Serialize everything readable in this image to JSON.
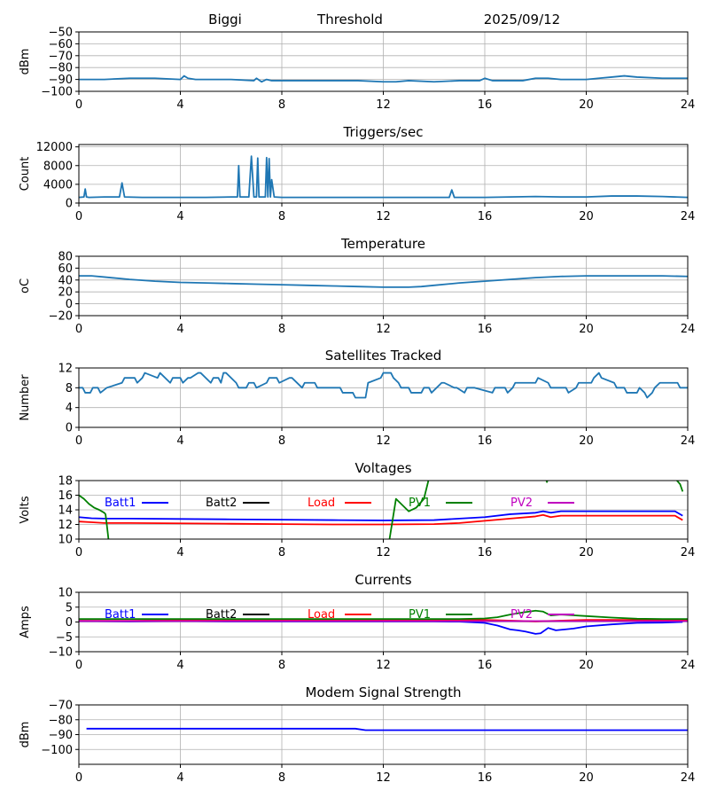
{
  "header": {
    "station": "Biggi",
    "mode": "Threshold",
    "date": "2025/09/12"
  },
  "chart_data": [
    {
      "id": "signal",
      "type": "line",
      "title": "",
      "xlabel": "",
      "ylabel": "dBm",
      "xlim": [
        0,
        24
      ],
      "ylim": [
        -100,
        -50
      ],
      "xticks": [
        0,
        4,
        8,
        12,
        16,
        20,
        24
      ],
      "yticks": [
        -100,
        -90,
        -80,
        -70,
        -60,
        -50
      ],
      "grid": true,
      "series": [
        {
          "color": "#1f77b4",
          "x": [
            0,
            1,
            2,
            3,
            4,
            4.15,
            4.3,
            4.6,
            5,
            6,
            6.9,
            7.0,
            7.2,
            7.4,
            7.6,
            8,
            9,
            10,
            11,
            12,
            12.5,
            13,
            14,
            15,
            15.8,
            16,
            16.3,
            16.8,
            17.5,
            18,
            18.5,
            19,
            20,
            20.5,
            21,
            21.5,
            22,
            23,
            24
          ],
          "y": [
            -90,
            -90,
            -89,
            -89,
            -90,
            -87,
            -89,
            -90,
            -90,
            -90,
            -91,
            -89,
            -92,
            -90,
            -91,
            -91,
            -91,
            -91,
            -91,
            -92,
            -92,
            -91,
            -92,
            -91,
            -91,
            -89,
            -91,
            -91,
            -91,
            -89,
            -89,
            -90,
            -90,
            -89,
            -88,
            -87,
            -88,
            -89,
            -89
          ]
        }
      ]
    },
    {
      "id": "triggers",
      "type": "line",
      "title": "Triggers/sec",
      "xlabel": "",
      "ylabel": "Count",
      "xlim": [
        0,
        24
      ],
      "ylim": [
        0,
        12500
      ],
      "xticks": [
        0,
        4,
        8,
        12,
        16,
        20,
        24
      ],
      "yticks": [
        0,
        4000,
        8000,
        12000
      ],
      "grid": true,
      "series": [
        {
          "color": "#1f77b4",
          "x": [
            0,
            0.2,
            0.25,
            0.3,
            0.4,
            1,
            1.6,
            1.7,
            1.8,
            2.5,
            3,
            4,
            5,
            6,
            6.25,
            6.3,
            6.35,
            6.6,
            6.7,
            6.8,
            6.9,
            7.0,
            7.05,
            7.1,
            7.2,
            7.35,
            7.4,
            7.45,
            7.5,
            7.55,
            7.6,
            7.7,
            8,
            9,
            10,
            11,
            12,
            13,
            14,
            14.6,
            14.7,
            14.8,
            15,
            16,
            17,
            18,
            19,
            20,
            21,
            22,
            23,
            24
          ],
          "y": [
            1200,
            1300,
            3000,
            1300,
            1200,
            1300,
            1300,
            4300,
            1300,
            1200,
            1200,
            1200,
            1200,
            1300,
            1300,
            8000,
            1300,
            1300,
            1300,
            10000,
            1300,
            1300,
            9600,
            1300,
            1300,
            1300,
            9700,
            1300,
            9500,
            1300,
            5000,
            1300,
            1200,
            1200,
            1200,
            1200,
            1200,
            1200,
            1200,
            1200,
            2800,
            1200,
            1200,
            1200,
            1300,
            1400,
            1300,
            1300,
            1500,
            1500,
            1400,
            1200
          ]
        }
      ]
    },
    {
      "id": "temperature",
      "type": "line",
      "title": "Temperature",
      "xlabel": "",
      "ylabel": "oC",
      "xlim": [
        0,
        24
      ],
      "ylim": [
        -20,
        80
      ],
      "xticks": [
        0,
        4,
        8,
        12,
        16,
        20,
        24
      ],
      "yticks": [
        -20,
        0,
        20,
        40,
        60,
        80
      ],
      "grid": true,
      "series": [
        {
          "color": "#1f77b4",
          "x": [
            0,
            0.5,
            1,
            2,
            3,
            4,
            5,
            6,
            7,
            8,
            9,
            10,
            11,
            12,
            13,
            13.5,
            14,
            15,
            16,
            17,
            18,
            19,
            20,
            21,
            22,
            23,
            24
          ],
          "y": [
            47,
            47,
            45,
            41,
            38,
            36,
            35,
            34,
            33,
            32,
            31,
            30,
            29,
            28,
            28,
            29,
            31,
            35,
            38,
            41,
            44,
            46,
            47,
            47,
            47,
            47,
            46
          ]
        }
      ]
    },
    {
      "id": "satellites",
      "type": "line",
      "title": "Satellites Tracked",
      "xlabel": "",
      "ylabel": "Number",
      "xlim": [
        0,
        24
      ],
      "ylim": [
        0,
        12
      ],
      "xticks": [
        0,
        4,
        8,
        12,
        16,
        20,
        24
      ],
      "yticks": [
        0,
        4,
        8,
        12
      ],
      "grid": true,
      "series": [
        {
          "color": "#1f77b4",
          "x": [
            0,
            0.15,
            0.25,
            0.45,
            0.55,
            0.75,
            0.85,
            1.1,
            1.7,
            1.8,
            2.2,
            2.3,
            2.5,
            2.6,
            3.1,
            3.2,
            3.6,
            3.7,
            4.0,
            4.1,
            4.3,
            4.4,
            4.7,
            4.8,
            5.2,
            5.3,
            5.5,
            5.6,
            5.7,
            5.8,
            6.2,
            6.3,
            6.6,
            6.7,
            6.9,
            7.0,
            7.4,
            7.5,
            7.8,
            7.9,
            8.3,
            8.4,
            8.8,
            8.9,
            9.3,
            9.4,
            9.5,
            9.6,
            10.3,
            10.4,
            10.8,
            10.9,
            11.3,
            11.4,
            11.9,
            12.0,
            12.3,
            12.4,
            12.6,
            12.7,
            13.0,
            13.1,
            13.5,
            13.6,
            13.8,
            13.9,
            14.3,
            14.4,
            14.8,
            14.9,
            15.2,
            15.3,
            15.5,
            15.6,
            16.3,
            16.4,
            16.8,
            16.9,
            17.1,
            17.2,
            18.0,
            18.1,
            18.5,
            18.6,
            19.2,
            19.3,
            19.6,
            19.7,
            20.2,
            20.3,
            20.5,
            20.6,
            21.1,
            21.2,
            21.5,
            21.6,
            22.0,
            22.1,
            22.3,
            22.4,
            22.6,
            22.7,
            22.9,
            23.0,
            23.6,
            23.7,
            24
          ],
          "y": [
            8,
            8,
            7,
            7,
            8,
            8,
            7,
            8,
            9,
            10,
            10,
            9,
            10,
            11,
            10,
            11,
            9,
            10,
            10,
            9,
            10,
            10,
            11,
            11,
            9,
            10,
            10,
            9,
            11,
            11,
            9,
            8,
            8,
            9,
            9,
            8,
            9,
            10,
            10,
            9,
            10,
            10,
            8,
            9,
            9,
            8,
            8,
            8,
            8,
            7,
            7,
            6,
            6,
            9,
            10,
            11,
            11,
            10,
            9,
            8,
            8,
            7,
            7,
            8,
            8,
            7,
            9,
            9,
            8,
            8,
            7,
            8,
            8,
            8,
            7,
            8,
            8,
            7,
            8,
            9,
            9,
            10,
            9,
            8,
            8,
            7,
            8,
            9,
            9,
            10,
            11,
            10,
            9,
            8,
            8,
            7,
            7,
            8,
            7,
            6,
            7,
            8,
            9,
            9,
            9,
            8,
            8
          ]
        }
      ]
    },
    {
      "id": "voltages",
      "type": "line",
      "title": "Voltages",
      "xlabel": "",
      "ylabel": "Volts",
      "xlim": [
        0,
        24
      ],
      "ylim": [
        10,
        18
      ],
      "xticks": [
        0,
        4,
        8,
        12,
        16,
        20,
        24
      ],
      "yticks": [
        10,
        12,
        14,
        16,
        18
      ],
      "grid": true,
      "legend": "top",
      "series": [
        {
          "name": "Batt1",
          "color": "#0000ff",
          "x": [
            0,
            0.5,
            1,
            2,
            4,
            6,
            8,
            10,
            12,
            14,
            15,
            16,
            17,
            18,
            18.3,
            18.6,
            19,
            20,
            21,
            22,
            23,
            23.5,
            23.8
          ],
          "y": [
            13,
            12.85,
            12.8,
            12.8,
            12.75,
            12.7,
            12.65,
            12.6,
            12.55,
            12.6,
            12.8,
            13.0,
            13.4,
            13.6,
            13.8,
            13.6,
            13.8,
            13.8,
            13.8,
            13.8,
            13.8,
            13.8,
            13.2
          ]
        },
        {
          "name": "Batt2",
          "color": "#000000",
          "x": [],
          "y": []
        },
        {
          "name": "Load",
          "color": "#ff0000",
          "x": [
            0,
            0.5,
            1,
            2,
            4,
            6,
            8,
            10,
            12,
            14,
            15,
            16,
            17,
            18,
            18.3,
            18.6,
            19,
            20,
            21,
            22,
            23,
            23.5,
            23.8
          ],
          "y": [
            12.4,
            12.3,
            12.2,
            12.2,
            12.15,
            12.1,
            12.05,
            12.0,
            12.0,
            12.05,
            12.2,
            12.5,
            12.8,
            13.1,
            13.3,
            13.0,
            13.2,
            13.2,
            13.2,
            13.2,
            13.2,
            13.2,
            12.6
          ]
        },
        {
          "name": "PV1",
          "color": "#008000",
          "x": [
            0,
            0.2,
            0.4,
            0.6,
            0.8,
            1.0,
            1.05,
            1.1,
            1.2,
            12.2,
            12.5,
            13.0,
            13.3,
            13.6,
            13.8,
            18.4,
            18.45,
            18.5,
            23.5,
            23.7,
            23.8
          ],
          "y": [
            16.0,
            15.5,
            14.8,
            14.3,
            14.0,
            13.6,
            13.4,
            12.0,
            9.0,
            9.0,
            15.5,
            13.8,
            14.3,
            15.5,
            18.3,
            18.3,
            17.8,
            18.3,
            18.3,
            17.5,
            16.5
          ]
        },
        {
          "name": "PV2",
          "color": "#bf00bf",
          "x": [],
          "y": []
        }
      ]
    },
    {
      "id": "currents",
      "type": "line",
      "title": "Currents",
      "xlabel": "",
      "ylabel": "Amps",
      "xlim": [
        0,
        24
      ],
      "ylim": [
        -10,
        10
      ],
      "xticks": [
        0,
        4,
        8,
        12,
        16,
        20,
        24
      ],
      "yticks": [
        -10,
        -5,
        0,
        5,
        10
      ],
      "grid": true,
      "legend": "top",
      "series": [
        {
          "name": "Batt1",
          "color": "#0000ff",
          "x": [
            0,
            2,
            4,
            6,
            8,
            10,
            12,
            14,
            15,
            16,
            16.5,
            17,
            17.3,
            17.6,
            18,
            18.2,
            18.5,
            18.8,
            19.5,
            20,
            21,
            22,
            23,
            23.8
          ],
          "y": [
            0.3,
            0.2,
            0.3,
            0.2,
            0.2,
            0.2,
            0.2,
            0.2,
            0.1,
            -0.3,
            -1.2,
            -2.5,
            -2.8,
            -3.2,
            -4.0,
            -3.8,
            -2.0,
            -2.8,
            -2.2,
            -1.5,
            -0.8,
            -0.3,
            -0.2,
            0.0
          ]
        },
        {
          "name": "Batt2",
          "color": "#000000",
          "x": [],
          "y": []
        },
        {
          "name": "Load",
          "color": "#ff0000",
          "x": [
            0,
            2,
            4,
            6,
            8,
            10,
            12,
            14,
            16,
            18,
            20,
            22,
            24
          ],
          "y": [
            0.9,
            0.9,
            0.8,
            0.8,
            0.8,
            0.8,
            0.8,
            0.8,
            0.7,
            0.2,
            0.7,
            0.7,
            0.7
          ]
        },
        {
          "name": "PV1",
          "color": "#008000",
          "x": [
            0,
            1,
            2,
            3,
            4,
            6,
            8,
            10,
            12,
            14,
            15,
            16,
            16.5,
            17,
            17.5,
            18,
            18.3,
            18.6,
            19,
            20,
            21,
            22,
            23,
            24
          ],
          "y": [
            1.0,
            1.0,
            1.0,
            1.0,
            1.0,
            1.0,
            1.0,
            1.0,
            1.0,
            1.0,
            1.0,
            1.2,
            1.6,
            2.5,
            3.2,
            3.8,
            3.5,
            2.2,
            2.5,
            2.0,
            1.5,
            1.1,
            1.0,
            1.0
          ]
        },
        {
          "name": "PV2",
          "color": "#bf00bf",
          "x": [
            0,
            4,
            8,
            12,
            16,
            20,
            24
          ],
          "y": [
            0.3,
            0.3,
            0.3,
            0.3,
            0.3,
            0.3,
            0.3
          ]
        }
      ]
    },
    {
      "id": "modem",
      "type": "line",
      "title": "Modem Signal Strength",
      "xlabel": "",
      "ylabel": "dBm",
      "xlim": [
        0,
        24
      ],
      "ylim": [
        -110,
        -70
      ],
      "xticks": [
        0,
        4,
        8,
        12,
        16,
        20,
        24
      ],
      "yticks": [
        -100,
        -90,
        -80,
        -70
      ],
      "grid": true,
      "series": [
        {
          "color": "#0000ff",
          "x": [
            0.3,
            4,
            8,
            10.9,
            11.3,
            12,
            16,
            20,
            24
          ],
          "y": [
            -86,
            -86,
            -86,
            -86,
            -87,
            -87,
            -87,
            -87,
            -87
          ]
        }
      ]
    }
  ]
}
